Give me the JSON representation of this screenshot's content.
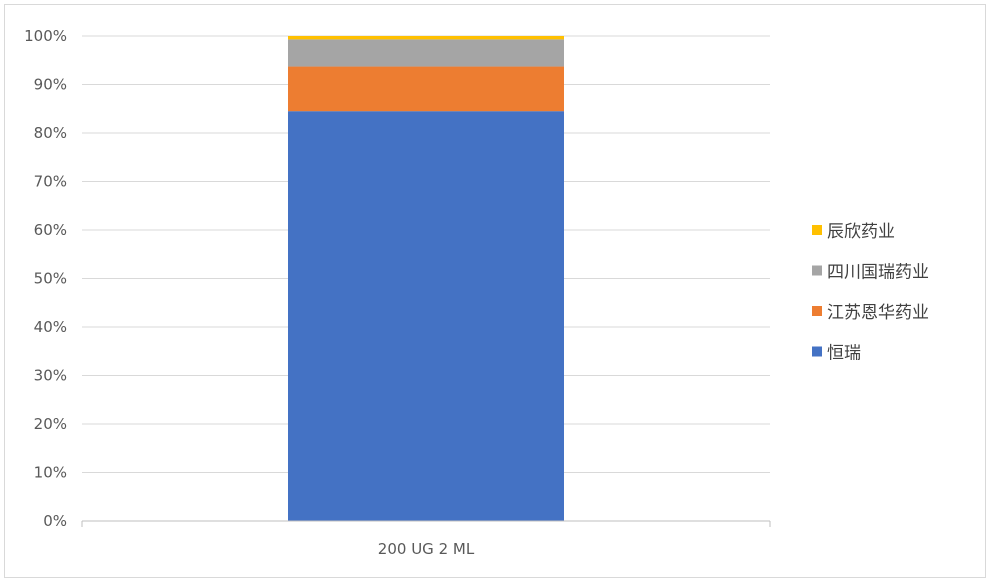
{
  "chart_data": {
    "type": "bar",
    "stacked": true,
    "percent_stacked": true,
    "categories": [
      "200 UG 2 ML"
    ],
    "series": [
      {
        "name": "恒瑞",
        "values": [
          84.5
        ],
        "color": "#4472C4"
      },
      {
        "name": "江苏恩华药业",
        "values": [
          9.2
        ],
        "color": "#ED7D31"
      },
      {
        "name": "四川国瑞药业",
        "values": [
          5.6
        ],
        "color": "#A5A5A5"
      },
      {
        "name": "辰欣药业",
        "values": [
          0.7
        ],
        "color": "#FFC000"
      }
    ],
    "ylim": [
      0,
      100
    ],
    "yticks": [
      "0%",
      "10%",
      "20%",
      "30%",
      "40%",
      "50%",
      "60%",
      "70%",
      "80%",
      "90%",
      "100%"
    ],
    "grid": true,
    "legend_position": "right",
    "legend_order": [
      "辰欣药业",
      "四川国瑞药业",
      "江苏恩华药业",
      "恒瑞"
    ]
  }
}
